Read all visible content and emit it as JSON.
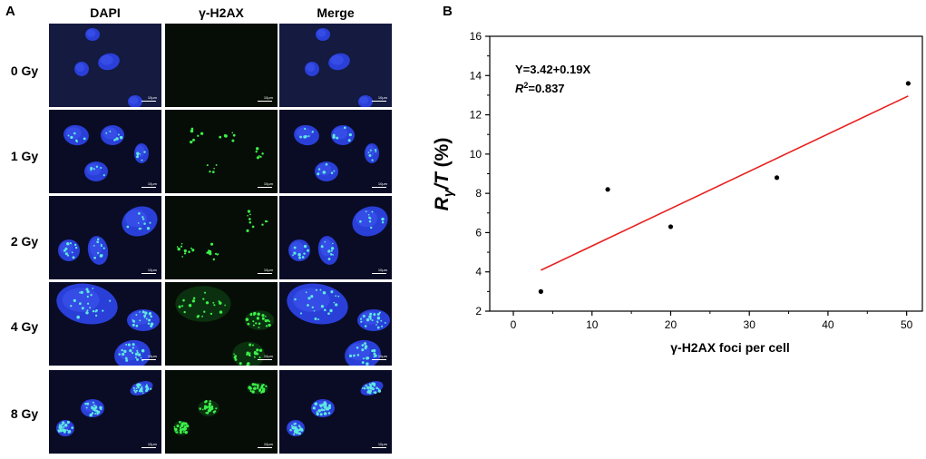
{
  "panel_a": {
    "letter": "A",
    "columns": [
      "DAPI",
      "γ-H2AX",
      "Merge"
    ],
    "rows": [
      "0 Gy",
      "1 Gy",
      "2 Gy",
      "4 Gy",
      "8 Gy"
    ],
    "scale_bar_label": "10μm"
  },
  "panel_b": {
    "letter": "B",
    "equation": "Y=3.42+0.19X",
    "r2_prefix": "R",
    "r2_sup": "2",
    "r2_value": "=0.837"
  },
  "chart_data": {
    "type": "scatter",
    "title": "",
    "xlabel": "γ-H2AX foci per cell",
    "ylabel_parts": [
      "R",
      "γ",
      "/T",
      " (%)"
    ],
    "xlim": [
      -3,
      52
    ],
    "ylim": [
      2,
      16
    ],
    "x_ticks": [
      0,
      10,
      20,
      30,
      40,
      50
    ],
    "y_ticks": [
      2,
      4,
      6,
      8,
      10,
      12,
      14,
      16
    ],
    "points": [
      {
        "x": 3.5,
        "y": 3.0
      },
      {
        "x": 12.0,
        "y": 8.2
      },
      {
        "x": 20.0,
        "y": 6.3
      },
      {
        "x": 33.5,
        "y": 8.8
      },
      {
        "x": 50.2,
        "y": 13.6
      }
    ],
    "fit_line": {
      "intercept": 3.42,
      "slope": 0.19,
      "x_range": [
        3.5,
        50.2
      ],
      "color": "#e8201e"
    },
    "point_color": "#000000",
    "grid": false
  }
}
